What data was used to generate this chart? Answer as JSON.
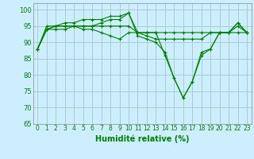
{
  "title": "",
  "xlabel": "Humidité relative (%)",
  "ylabel": "",
  "background_color": "#cceeff",
  "grid_color": "#aacccc",
  "line_color": "#008000",
  "ylim": [
    65,
    102
  ],
  "yticks": [
    65,
    70,
    75,
    80,
    85,
    90,
    95,
    100
  ],
  "xlim": [
    -0.5,
    23.5
  ],
  "xticks": [
    0,
    1,
    2,
    3,
    4,
    5,
    6,
    7,
    8,
    9,
    10,
    11,
    12,
    13,
    14,
    15,
    16,
    17,
    18,
    19,
    20,
    21,
    22,
    23
  ],
  "series": [
    [
      88,
      94,
      95,
      95,
      95,
      95,
      95,
      96,
      97,
      97,
      99,
      92,
      91,
      90,
      87,
      79,
      73,
      78,
      87,
      88,
      93,
      93,
      96,
      93
    ],
    [
      88,
      94,
      95,
      96,
      96,
      97,
      97,
      97,
      98,
      98,
      99,
      93,
      92,
      91,
      91,
      91,
      91,
      91,
      91,
      93,
      93,
      93,
      95,
      93
    ],
    [
      88,
      94,
      94,
      94,
      95,
      95,
      95,
      95,
      95,
      95,
      95,
      93,
      93,
      93,
      93,
      93,
      93,
      93,
      93,
      93,
      93,
      93,
      93,
      93
    ],
    [
      88,
      95,
      95,
      95,
      95,
      94,
      94,
      93,
      92,
      91,
      93,
      93,
      93,
      93,
      86,
      79,
      73,
      78,
      86,
      88,
      93,
      93,
      96,
      93
    ]
  ]
}
